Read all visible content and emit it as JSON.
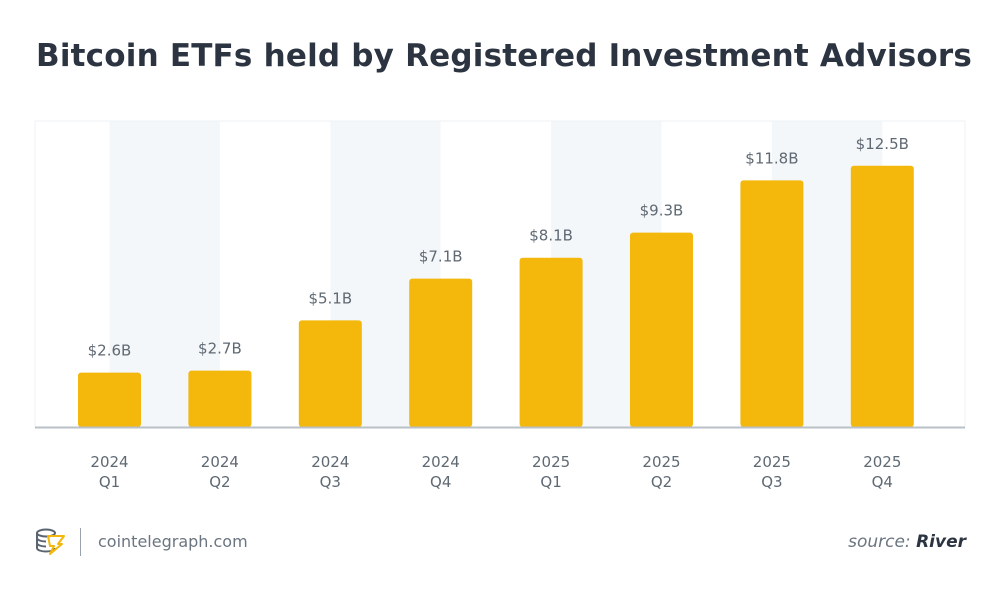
{
  "title": "Bitcoin ETFs held by Registered Investment Advisors",
  "footer": {
    "site": "cointelegraph.com",
    "source_prefix": "source:",
    "source_name": "River",
    "logo_icon": "cointelegraph-logo-icon"
  },
  "colors": {
    "bar": "#F4B70B",
    "band": "#F4F7F9",
    "text": "#2B3440",
    "label": "#5F6973"
  },
  "chart_data": {
    "type": "bar",
    "title": "Bitcoin ETFs held by Registered Investment Advisors",
    "categories": [
      [
        "2024",
        "Q1"
      ],
      [
        "2024",
        "Q2"
      ],
      [
        "2024",
        "Q3"
      ],
      [
        "2024",
        "Q4"
      ],
      [
        "2025",
        "Q1"
      ],
      [
        "2025",
        "Q2"
      ],
      [
        "2025",
        "Q3"
      ],
      [
        "2025",
        "Q4"
      ]
    ],
    "values": [
      2.6,
      2.7,
      5.1,
      7.1,
      8.1,
      9.3,
      11.8,
      12.5
    ],
    "data_labels": [
      "$2.6B",
      "$2.7B",
      "$5.1B",
      "$7.1B",
      "$8.1B",
      "$9.3B",
      "$11.8B",
      "$12.5B"
    ],
    "unit": "billion USD",
    "xlabel": "",
    "ylabel": "",
    "ylim": [
      0,
      14.5
    ],
    "grid": false,
    "legend": "none"
  }
}
